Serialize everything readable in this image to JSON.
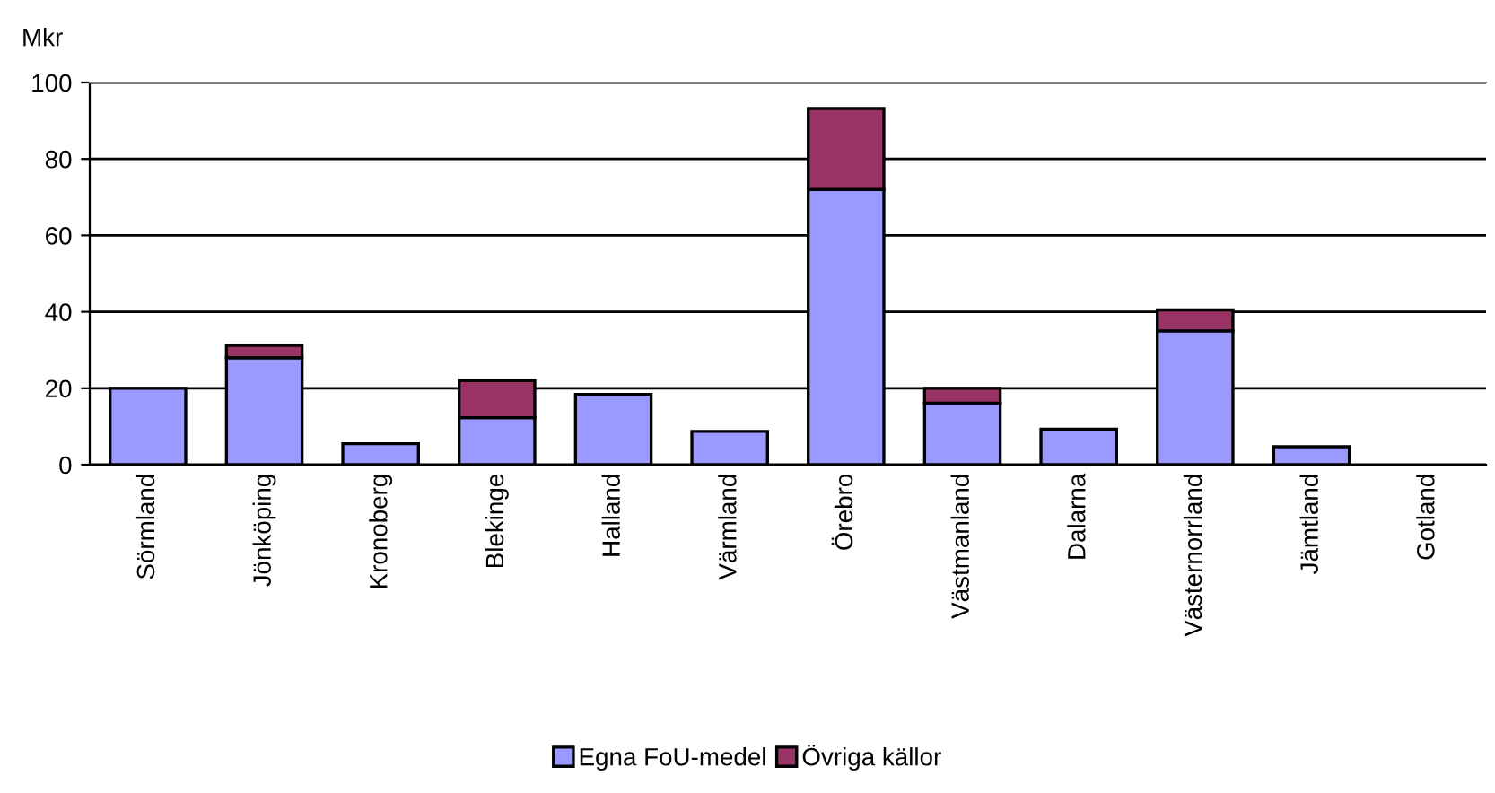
{
  "chart_data": {
    "type": "bar",
    "stacked": true,
    "ylabel": "Mkr",
    "categories": [
      "Sörmland",
      "Jönköping",
      "Kronoberg",
      "Blekinge",
      "Halland",
      "Värmland",
      "Örebro",
      "Västmanland",
      "Dalarna",
      "Västernorrland",
      "Jämtland",
      "Gotland"
    ],
    "series": [
      {
        "name": "Egna FoU-medel",
        "color": "#9999ff",
        "values": [
          20,
          28,
          5.5,
          12.3,
          18.4,
          8.7,
          72,
          16.1,
          9.3,
          35,
          4.7,
          null
        ]
      },
      {
        "name": "Övriga källor",
        "color": "#993366",
        "values": [
          null,
          3.2,
          null,
          9.7,
          null,
          null,
          21.2,
          3.9,
          null,
          5.5,
          null,
          null
        ]
      }
    ],
    "ylim": [
      0,
      100
    ],
    "yticks": [
      0,
      20,
      40,
      60,
      80,
      100
    ],
    "grid": "y",
    "legend": "bottom"
  }
}
